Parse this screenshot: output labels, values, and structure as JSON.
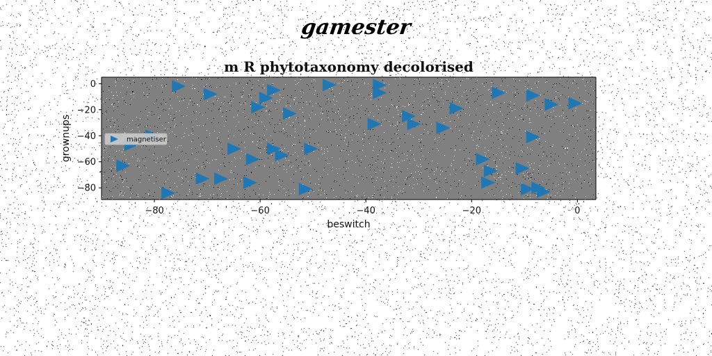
{
  "suptitle": "gamester",
  "chart_data": {
    "type": "scatter",
    "title": "m R phytotaxonomy decolorised",
    "xlabel": "beswitch",
    "ylabel": "grownups",
    "xlim": [
      -90,
      3.5
    ],
    "ylim": [
      -89,
      5
    ],
    "xticks": [
      -80,
      -60,
      -40,
      -20,
      0
    ],
    "yticks": [
      0,
      -20,
      -40,
      -60,
      -80
    ],
    "xtick_labels": [
      "−80",
      "−60",
      "−40",
      "−20",
      "0"
    ],
    "ytick_labels": [
      "0",
      "−20",
      "−40",
      "−60",
      "−80"
    ],
    "marker": "triangle-right",
    "grid": false,
    "legend_position": "center-left",
    "background_color": "#808080",
    "series": [
      {
        "name": "magnetiser",
        "color": "#1f77b4",
        "points": [
          {
            "x": -75.5,
            "y": -2
          },
          {
            "x": -69.5,
            "y": -8
          },
          {
            "x": -57.5,
            "y": -5
          },
          {
            "x": -59,
            "y": -11
          },
          {
            "x": -60.5,
            "y": -18
          },
          {
            "x": -54.5,
            "y": -23
          },
          {
            "x": -47,
            "y": -1
          },
          {
            "x": -37.5,
            "y": -1
          },
          {
            "x": -37.5,
            "y": -7
          },
          {
            "x": -15,
            "y": -7
          },
          {
            "x": -8.5,
            "y": -9
          },
          {
            "x": -5,
            "y": -16
          },
          {
            "x": -0.5,
            "y": -15
          },
          {
            "x": -23,
            "y": -19
          },
          {
            "x": -32,
            "y": -25
          },
          {
            "x": -31,
            "y": -31
          },
          {
            "x": -38.5,
            "y": -31
          },
          {
            "x": -25.5,
            "y": -34
          },
          {
            "x": -8.5,
            "y": -41
          },
          {
            "x": -80.5,
            "y": -40
          },
          {
            "x": -84.5,
            "y": -47
          },
          {
            "x": -65,
            "y": -50
          },
          {
            "x": -57.5,
            "y": -50
          },
          {
            "x": -50.5,
            "y": -50
          },
          {
            "x": -56,
            "y": -55
          },
          {
            "x": -61.5,
            "y": -58
          },
          {
            "x": -86,
            "y": -63
          },
          {
            "x": -18,
            "y": -58
          },
          {
            "x": -16.5,
            "y": -67
          },
          {
            "x": -10.5,
            "y": -65
          },
          {
            "x": -71,
            "y": -73
          },
          {
            "x": -67.5,
            "y": -73
          },
          {
            "x": -62,
            "y": -76
          },
          {
            "x": -51.5,
            "y": -81
          },
          {
            "x": -77.5,
            "y": -84
          },
          {
            "x": -17,
            "y": -76
          },
          {
            "x": -9.5,
            "y": -81
          },
          {
            "x": -7.5,
            "y": -80
          },
          {
            "x": -6.5,
            "y": -83
          }
        ]
      }
    ]
  }
}
